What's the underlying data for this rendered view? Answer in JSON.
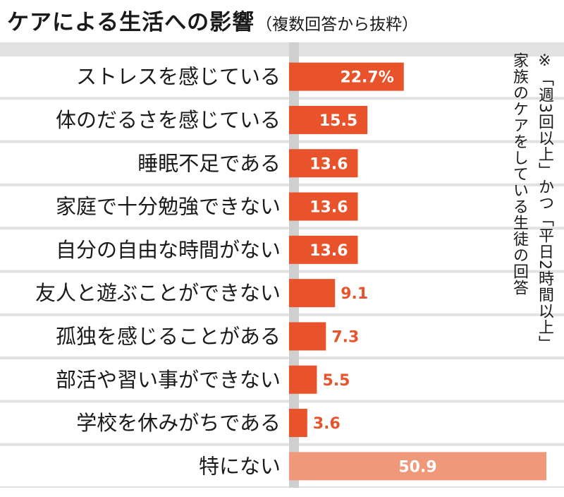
{
  "title": "ケアによる生活への影響",
  "subtitle": "（複数回答から抜粋）",
  "note": {
    "line1": "※「週3回以上」かつ「平日2時間以上」",
    "line2": "家族のケアをしている生徒の回答"
  },
  "colors": {
    "bar": "#e8532b",
    "bar_highlight": "#f0987a",
    "grid_bg": "#e2e2e2",
    "label_inside": "#ffffff",
    "label_outside": "#e8532b"
  },
  "chart_data": {
    "type": "bar",
    "orientation": "horizontal",
    "categories": [
      "ストレスを感じている",
      "体のだるさを感じている",
      "睡眠不足である",
      "家庭で十分勉強できない",
      "自分の自由な時間がない",
      "友人と遊ぶことができない",
      "孤独を感じることがある",
      "部活や習い事ができない",
      "学校を休みがちである",
      "特にない"
    ],
    "values": [
      22.7,
      15.5,
      13.6,
      13.6,
      13.6,
      9.1,
      7.3,
      5.5,
      3.6,
      50.9
    ],
    "value_labels": [
      "22.7%",
      "15.5",
      "13.6",
      "13.6",
      "13.6",
      "9.1",
      "7.3",
      "5.5",
      "3.6",
      "50.9"
    ],
    "unit": "%",
    "title": "ケアによる生活への影響",
    "subtitle": "（複数回答から抜粋）",
    "xlabel": "",
    "ylabel": "",
    "xlim": [
      0,
      50.9
    ],
    "grid": false,
    "legend": "none"
  }
}
